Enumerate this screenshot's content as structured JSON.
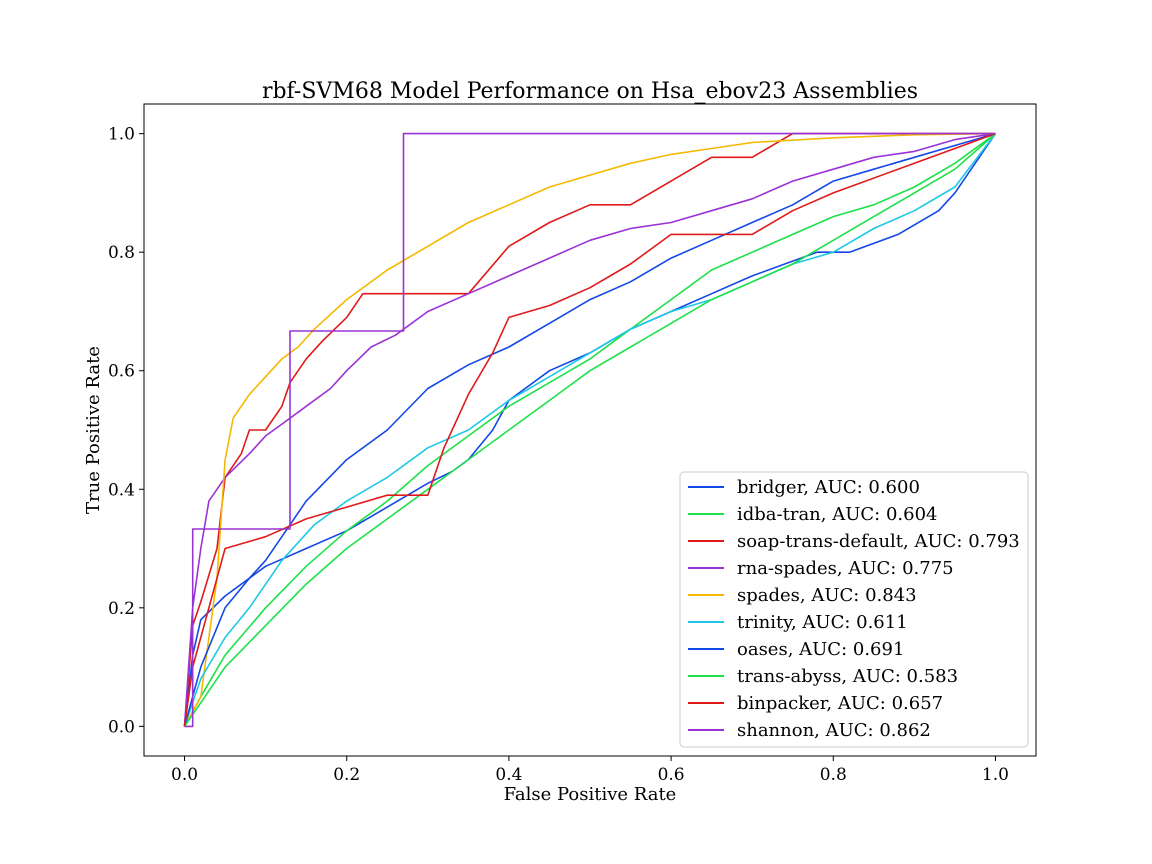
{
  "chart_data": {
    "type": "line",
    "title": "rbf-SVM68 Model Performance on Hsa_ebov23 Assemblies",
    "xlabel": "False Positive Rate",
    "ylabel": "True Positive Rate",
    "xlim": [
      -0.05,
      1.05
    ],
    "ylim": [
      -0.05,
      1.05
    ],
    "xticks": [
      "0.0",
      "0.2",
      "0.4",
      "0.6",
      "0.8",
      "1.0"
    ],
    "yticks": [
      "0.0",
      "0.2",
      "0.4",
      "0.6",
      "0.8",
      "1.0"
    ],
    "legend_position": "lower right",
    "grid": false,
    "series": [
      {
        "name": "bridger, AUC: 0.600",
        "color": "#1448e6",
        "x": [
          0,
          0.01,
          0.02,
          0.05,
          0.1,
          0.15,
          0.2,
          0.25,
          0.3,
          0.33,
          0.35,
          0.38,
          0.4,
          0.45,
          0.5,
          0.55,
          0.6,
          0.65,
          0.7,
          0.78,
          0.82,
          0.88,
          0.93,
          0.95,
          1.0
        ],
        "y": [
          0,
          0.12,
          0.18,
          0.22,
          0.27,
          0.3,
          0.33,
          0.37,
          0.41,
          0.43,
          0.45,
          0.5,
          0.55,
          0.6,
          0.63,
          0.67,
          0.7,
          0.73,
          0.76,
          0.8,
          0.8,
          0.83,
          0.87,
          0.9,
          1.0
        ]
      },
      {
        "name": "idba-tran, AUC: 0.604",
        "color": "#1ee04a",
        "x": [
          0,
          0.02,
          0.05,
          0.1,
          0.15,
          0.2,
          0.25,
          0.3,
          0.35,
          0.4,
          0.45,
          0.5,
          0.55,
          0.6,
          0.65,
          0.7,
          0.75,
          0.8,
          0.85,
          0.9,
          0.95,
          1.0
        ],
        "y": [
          0,
          0.05,
          0.12,
          0.2,
          0.27,
          0.33,
          0.38,
          0.44,
          0.49,
          0.54,
          0.58,
          0.62,
          0.67,
          0.72,
          0.77,
          0.8,
          0.83,
          0.86,
          0.88,
          0.91,
          0.95,
          1.0
        ]
      },
      {
        "name": "soap-trans-default, AUC: 0.793",
        "color": "#e01a1a",
        "x": [
          0,
          0.01,
          0.02,
          0.04,
          0.05,
          0.07,
          0.08,
          0.1,
          0.12,
          0.13,
          0.15,
          0.17,
          0.2,
          0.22,
          0.25,
          0.3,
          0.35,
          0.4,
          0.45,
          0.5,
          0.55,
          0.6,
          0.65,
          0.7,
          0.75,
          1.0
        ],
        "y": [
          0,
          0.17,
          0.21,
          0.3,
          0.42,
          0.46,
          0.5,
          0.5,
          0.54,
          0.58,
          0.62,
          0.65,
          0.69,
          0.73,
          0.73,
          0.73,
          0.73,
          0.81,
          0.85,
          0.88,
          0.88,
          0.92,
          0.96,
          0.96,
          1.0,
          1.0
        ]
      },
      {
        "name": "rna-spades, AUC: 0.775",
        "color": "#9a33d6",
        "x": [
          0,
          0.01,
          0.02,
          0.03,
          0.05,
          0.08,
          0.1,
          0.12,
          0.15,
          0.18,
          0.2,
          0.23,
          0.26,
          0.3,
          0.35,
          0.4,
          0.45,
          0.5,
          0.55,
          0.6,
          0.65,
          0.7,
          0.75,
          0.8,
          0.85,
          0.9,
          0.95,
          1.0
        ],
        "y": [
          0,
          0.2,
          0.3,
          0.38,
          0.42,
          0.46,
          0.49,
          0.51,
          0.54,
          0.57,
          0.6,
          0.64,
          0.66,
          0.7,
          0.73,
          0.76,
          0.79,
          0.82,
          0.84,
          0.85,
          0.87,
          0.89,
          0.92,
          0.94,
          0.96,
          0.97,
          0.99,
          1.0
        ]
      },
      {
        "name": "spades, AUC: 0.843",
        "color": "#f5b800",
        "x": [
          0,
          0.02,
          0.04,
          0.05,
          0.06,
          0.08,
          0.1,
          0.12,
          0.14,
          0.16,
          0.2,
          0.25,
          0.3,
          0.35,
          0.4,
          0.45,
          0.5,
          0.55,
          0.6,
          0.65,
          0.7,
          0.8,
          0.9,
          1.0
        ],
        "y": [
          0,
          0.05,
          0.25,
          0.45,
          0.52,
          0.56,
          0.59,
          0.62,
          0.64,
          0.67,
          0.72,
          0.77,
          0.81,
          0.85,
          0.88,
          0.91,
          0.93,
          0.95,
          0.965,
          0.975,
          0.985,
          0.993,
          0.998,
          1.0
        ]
      },
      {
        "name": "trinity, AUC: 0.611",
        "color": "#1ec8e6",
        "x": [
          0,
          0.02,
          0.05,
          0.08,
          0.12,
          0.16,
          0.2,
          0.25,
          0.3,
          0.35,
          0.4,
          0.45,
          0.5,
          0.55,
          0.6,
          0.65,
          0.7,
          0.75,
          0.8,
          0.85,
          0.9,
          0.95,
          1.0
        ],
        "y": [
          0,
          0.08,
          0.15,
          0.2,
          0.28,
          0.34,
          0.38,
          0.42,
          0.47,
          0.5,
          0.55,
          0.59,
          0.63,
          0.67,
          0.7,
          0.72,
          0.75,
          0.78,
          0.8,
          0.84,
          0.87,
          0.91,
          1.0
        ]
      },
      {
        "name": "oases, AUC: 0.691",
        "color": "#1448e6",
        "x": [
          0,
          0.02,
          0.05,
          0.08,
          0.1,
          0.15,
          0.2,
          0.25,
          0.3,
          0.35,
          0.4,
          0.45,
          0.5,
          0.55,
          0.6,
          0.65,
          0.7,
          0.75,
          0.8,
          0.85,
          0.9,
          0.95,
          1.0
        ],
        "y": [
          0,
          0.1,
          0.2,
          0.25,
          0.28,
          0.38,
          0.45,
          0.5,
          0.57,
          0.61,
          0.64,
          0.68,
          0.72,
          0.75,
          0.79,
          0.82,
          0.85,
          0.88,
          0.92,
          0.94,
          0.96,
          0.98,
          1.0
        ]
      },
      {
        "name": "trans-abyss, AUC: 0.583",
        "color": "#1ee04a",
        "x": [
          0,
          0.02,
          0.05,
          0.1,
          0.15,
          0.2,
          0.25,
          0.3,
          0.35,
          0.4,
          0.45,
          0.5,
          0.55,
          0.6,
          0.65,
          0.7,
          0.75,
          0.8,
          0.85,
          0.9,
          0.95,
          1.0
        ],
        "y": [
          0,
          0.04,
          0.1,
          0.17,
          0.24,
          0.3,
          0.35,
          0.4,
          0.45,
          0.5,
          0.55,
          0.6,
          0.64,
          0.68,
          0.72,
          0.75,
          0.78,
          0.82,
          0.86,
          0.9,
          0.94,
          1.0
        ]
      },
      {
        "name": "binpacker, AUC: 0.657",
        "color": "#e01a1a",
        "x": [
          0,
          0.01,
          0.02,
          0.03,
          0.05,
          0.1,
          0.15,
          0.2,
          0.25,
          0.3,
          0.32,
          0.35,
          0.38,
          0.4,
          0.45,
          0.5,
          0.55,
          0.6,
          0.65,
          0.7,
          0.75,
          0.8,
          0.9,
          1.0
        ],
        "y": [
          0,
          0.1,
          0.15,
          0.2,
          0.3,
          0.32,
          0.35,
          0.37,
          0.39,
          0.39,
          0.47,
          0.56,
          0.63,
          0.69,
          0.71,
          0.74,
          0.78,
          0.83,
          0.83,
          0.83,
          0.87,
          0.9,
          0.95,
          1.0
        ]
      },
      {
        "name": "shannon, AUC: 0.862",
        "color": "#9a33d6",
        "x": [
          0,
          0.01,
          0.01,
          0.13,
          0.13,
          0.27,
          0.27,
          1.0
        ],
        "y": [
          0,
          0,
          0.333,
          0.333,
          0.667,
          0.667,
          1.0,
          1.0
        ]
      }
    ]
  }
}
